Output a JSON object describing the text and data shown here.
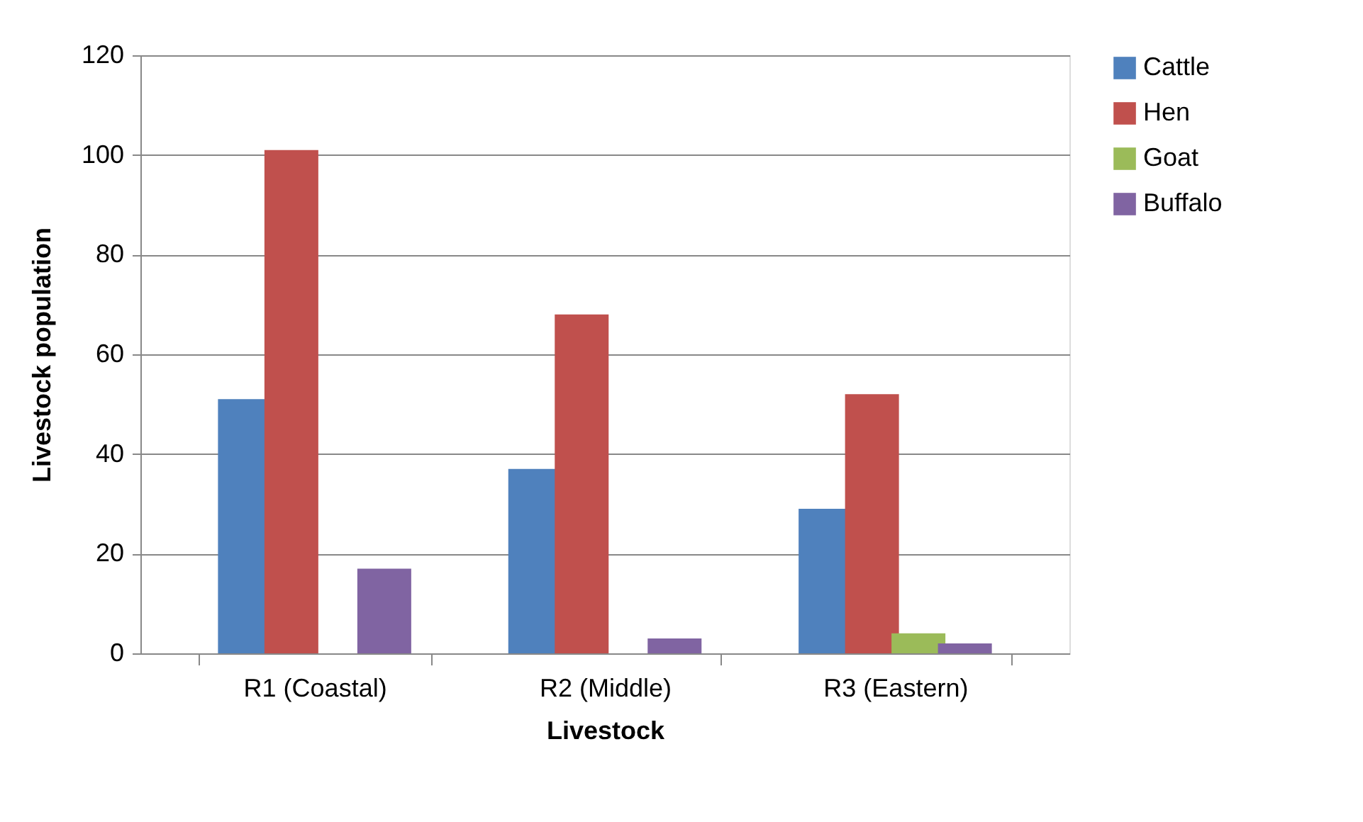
{
  "chart_data": {
    "type": "bar",
    "xlabel": "Livestock",
    "ylabel": "Livestock population",
    "categories": [
      "R1 (Coastal)",
      "R2 (Middle)",
      "R3 (Eastern)"
    ],
    "series": [
      {
        "name": "Cattle",
        "color": "#4f81bd",
        "values": [
          51,
          37,
          29
        ]
      },
      {
        "name": "Hen",
        "color": "#c0504d",
        "values": [
          101,
          68,
          52
        ]
      },
      {
        "name": "Goat",
        "color": "#9bbb59",
        "values": [
          0,
          0,
          4
        ]
      },
      {
        "name": "Buffalo",
        "color": "#8064a2",
        "values": [
          17,
          3,
          2
        ]
      }
    ],
    "ylim": [
      0,
      120
    ],
    "yticks": [
      0,
      20,
      40,
      60,
      80,
      100,
      120
    ],
    "grid": "y",
    "legend": "right"
  }
}
